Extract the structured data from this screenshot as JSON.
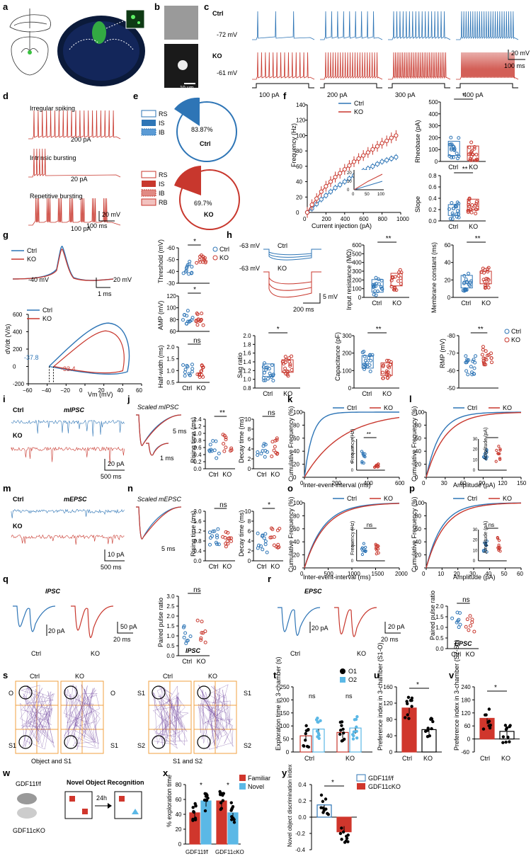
{
  "panel_letters": [
    "a",
    "b",
    "c",
    "d",
    "e",
    "f",
    "g",
    "h",
    "i",
    "j",
    "k",
    "l",
    "m",
    "n",
    "o",
    "p",
    "q",
    "r",
    "s",
    "t",
    "u",
    "v",
    "w",
    "x",
    "y"
  ],
  "colors": {
    "ctrl": "#2e75b6",
    "ko": "#c8372d",
    "novel": "#5bb8e6",
    "familiar": "#d0362c",
    "slice_bg": "#0b1a3a",
    "slice_green": "#39c23f"
  },
  "groups": {
    "ctrl": "Ctrl",
    "ko": "KO"
  },
  "common": {
    "ns": "ns",
    "star1": "*",
    "star2": "**"
  },
  "panel_c": {
    "ctrl_vm": "-72 mV",
    "ko_vm": "-61 mV",
    "steps": [
      "100 pA",
      "200 pA",
      "300 pA",
      "400 pA"
    ],
    "scale_v": "20 mV",
    "scale_t": "100 ms"
  },
  "panel_b": {
    "scale": "10 μm"
  },
  "panel_d": {
    "labels": [
      "Irregular spiking",
      "Intrinsic bursting",
      "Repetitive bursting"
    ],
    "currents": [
      "200 pA",
      "20 pA",
      "100 pA"
    ],
    "scale_v": "20 mV",
    "scale_t": "100 ms"
  },
  "panel_e": {
    "ctrl_legend": [
      "RS",
      "IS",
      "IB"
    ],
    "ctrl_pct": "83.87%",
    "ctrl_label": "Ctrl",
    "ko_legend": [
      "RS",
      "IS",
      "IB",
      "RB"
    ],
    "ko_pct": "69.7%",
    "ko_label": "KO"
  },
  "panel_f": {
    "xlabel": "Current injection (pA)",
    "ylabel": "Frequency (Hz)",
    "yticks": [
      "0",
      "20",
      "40",
      "60",
      "80",
      "100",
      "120",
      "140"
    ],
    "xticks": [
      "0",
      "200",
      "400",
      "600",
      "800",
      "1000"
    ],
    "inset_xticks": [
      "0",
      "50",
      "100"
    ],
    "inset_yticks": [
      "0",
      "10",
      "20"
    ],
    "rheobase_ylabel": "Rheobase (pA)",
    "rheobase_yticks": [
      "0",
      "100",
      "200",
      "300",
      "400",
      "500"
    ],
    "slope_ylabel": "Slope",
    "slope_yticks": [
      "0.0",
      "0.2",
      "0.4",
      "0.6",
      "0.8"
    ]
  },
  "panel_g": {
    "vm": "-40 mV",
    "scale_v": "20 mV",
    "scale_t": "1 ms",
    "ylabel": "dV/dt (V/s)",
    "xlabel": "Vm (mV)",
    "yticks": [
      "-200",
      "0",
      "200",
      "400",
      "600"
    ],
    "xticks": [
      "−60",
      "−40",
      "−20",
      "0",
      "20",
      "40",
      "60"
    ],
    "ctrl_thr": "-37.8",
    "ko_thr": "-33.4",
    "threshold_label": "Threshold (mV)",
    "threshold_ticks": [
      "-30",
      "-40",
      "-50",
      "-60"
    ],
    "amp_label": "AMP (mV)",
    "amp_ticks": [
      "60",
      "80",
      "100",
      "120"
    ],
    "hw_label": "Half-width (ms)",
    "hw_ticks": [
      "0.5",
      "1.0",
      "1.5",
      "2.0"
    ]
  },
  "panel_h": {
    "vm": "-63 mV",
    "scale_v": "5 mV",
    "scale_t": "200 ms",
    "ir_label": "Input resistance (MΩ)",
    "ir_ticks": [
      "0",
      "100",
      "200",
      "300",
      "400",
      "500",
      "600"
    ],
    "mc_label": "Membrane constant (ms)",
    "mc_ticks": [
      "0",
      "20",
      "40",
      "60"
    ],
    "sag_label": "Sag ratio",
    "sag_ticks": [
      "0.8",
      "1.0",
      "1.2",
      "1.4",
      "1.6",
      "1.8",
      "2.0"
    ],
    "cap_label": "Capacitance (pF)",
    "cap_ticks": [
      "0",
      "100",
      "200",
      "300"
    ],
    "rmp_label": "RMP (mV)",
    "rmp_ticks": [
      "-50",
      "-60",
      "-70",
      "-80"
    ]
  },
  "panel_i": {
    "title": "mIPSC",
    "scale_v": "20 pA",
    "scale_t": "500 ms"
  },
  "panel_j": {
    "title": "Scaled mIPSC",
    "scale_t": "5 ms",
    "inset_t": "1 ms",
    "rise_label": "Rising time (ms)",
    "rise_ticks": [
      "0.0",
      "0.2",
      "0.4",
      "0.6",
      "0.8",
      "1.0",
      "1.2",
      "1.4"
    ],
    "decay_label": "Decay time (ms)",
    "decay_ticks": [
      "0",
      "2",
      "4",
      "6",
      "8",
      "10"
    ]
  },
  "panel_k": {
    "ylabel": "Cumulative Frequency (%)",
    "xlabel": "Inter-event-interval (ms)",
    "yticks": [
      "0",
      "20",
      "40",
      "60",
      "80",
      "100"
    ],
    "xticks": [
      "0",
      "200",
      "400",
      "600"
    ],
    "inset_label": "Frequency (Hz)",
    "inset_ticks": [
      "0",
      "2",
      "4",
      "6",
      "8"
    ]
  },
  "panel_l": {
    "ylabel": "Cumulative Frequency (%)",
    "xlabel": "Amplitude (pA)",
    "xticks": [
      "0",
      "30",
      "60",
      "90",
      "120",
      "150"
    ],
    "inset_label": "Amplitude (pA)",
    "inset_ticks": [
      "0",
      "10",
      "20",
      "30"
    ]
  },
  "panel_m": {
    "title": "mEPSC",
    "scale_v": "10 pA",
    "scale_t": "500 ms"
  },
  "panel_n": {
    "title": "Scaled mEPSC",
    "scale_t": "5 ms",
    "rise_label": "Rising time (ms)",
    "rise_ticks": [
      "0.0",
      "0.4",
      "0.8",
      "1.2",
      "1.6",
      "2.0"
    ],
    "decay_label": "Decay time (ms)",
    "decay_ticks": [
      "0",
      "2",
      "4",
      "6",
      "8",
      "10"
    ]
  },
  "panel_o": {
    "ylabel": "Cumulative Frequency (%)",
    "xlabel": "Inter-event-interval (ms)",
    "xticks": [
      "0",
      "500",
      "1000",
      "1500",
      "2000"
    ],
    "inset_label": "Frequency (Hz)",
    "inset_ticks": [
      "0",
      "2",
      "4"
    ]
  },
  "panel_p": {
    "ylabel": "Cumulative Frequency (%)",
    "xlabel": "Amplitude (pA)",
    "xticks": [
      "0",
      "10",
      "20",
      "30",
      "40",
      "50",
      "60"
    ],
    "inset_label": "Amplitude (pA)",
    "inset_ticks": [
      "0",
      "10",
      "20",
      "30"
    ]
  },
  "panel_q": {
    "title": "IPSC",
    "scale_ctrl": "20 pA",
    "scale_ko_v": "50 pA",
    "scale_ko_t": "20 ms",
    "ppr_label": "Paired pulse ratio",
    "ppr_ticks": [
      "0.0",
      "0.5",
      "1.0",
      "1.5",
      "2.0",
      "2.5",
      "3.0"
    ],
    "ppr_title": "IPSC"
  },
  "panel_r": {
    "title": "EPSC",
    "scale_ctrl": "20 pA",
    "scale_ko_v": "20 pA",
    "scale_ko_t": "20 ms",
    "ppr_label": "Paired pulse ratio",
    "ppr_ticks": [
      "0.0",
      "0.5",
      "1.0",
      "1.5",
      "2.0"
    ],
    "ppr_title": "EPSC"
  },
  "panel_s": {
    "left_caption": "Object and S1",
    "right_caption": "S1 and S2",
    "left_row_labels": [
      "O",
      "S1"
    ],
    "right_row_labels_l": [
      "S1",
      "S2"
    ],
    "right_row_labels_r": [
      "S1",
      "S2"
    ]
  },
  "panel_t": {
    "ylabel": "Exploration time in 3-chamber (s)",
    "yticks": [
      "0",
      "50",
      "100",
      "150",
      "200",
      "250"
    ],
    "legend": [
      "O1",
      "O2"
    ]
  },
  "panel_u": {
    "ylabel": "Preference index in 3-chamber (S1-O)",
    "yticks": [
      "0",
      "40",
      "80",
      "120",
      "160"
    ]
  },
  "panel_v": {
    "ylabel": "Preference index in 3-chamber (S2-S1)",
    "yticks": [
      "-60",
      "0",
      "60",
      "120",
      "180",
      "240"
    ]
  },
  "panel_w": {
    "title": "Novel Object Recognition",
    "delay": "24h",
    "flox": "GDF11f/f",
    "cko": "GDF11cKO"
  },
  "panel_x": {
    "ylabel": "% exploration time",
    "yticks": [
      "0",
      "20",
      "40",
      "60",
      "80"
    ],
    "legend": [
      "Familiar",
      "Novel"
    ],
    "xlabels": [
      "GDF11f/f",
      "GDF11cKO"
    ]
  },
  "panel_y": {
    "ylabel": "Novel object discrimination index",
    "yticks": [
      "-0.4",
      "-0.2",
      "0.0",
      "0.2",
      "0.4"
    ],
    "legend": [
      "GDF11f/f",
      "GDF11cKO"
    ]
  },
  "chart_data": [
    {
      "panel": "f",
      "type": "line",
      "xlabel": "Current injection (pA)",
      "ylabel": "Frequency (Hz)",
      "xlim": [
        0,
        1000
      ],
      "ylim": [
        0,
        140
      ],
      "x": [
        0,
        50,
        100,
        150,
        200,
        250,
        300,
        350,
        400,
        450,
        500,
        550,
        600,
        650,
        700,
        750,
        800,
        850,
        900,
        950
      ],
      "series": [
        {
          "name": "Ctrl",
          "values": [
            0,
            5,
            11,
            17,
            22,
            27,
            32,
            36,
            40,
            44,
            48,
            51,
            54,
            57,
            60,
            63,
            66,
            68,
            70,
            72
          ]
        },
        {
          "name": "KO",
          "values": [
            0,
            10,
            18,
            27,
            34,
            40,
            46,
            51,
            56,
            61,
            66,
            70,
            74,
            78,
            82,
            86,
            90,
            93,
            97,
            100
          ]
        }
      ]
    },
    {
      "panel": "f",
      "type": "bar",
      "title": "Rheobase (pA)",
      "categories": [
        "Ctrl",
        "KO"
      ],
      "values": [
        110,
        80
      ]
    },
    {
      "panel": "f",
      "type": "bar",
      "title": "Slope",
      "categories": [
        "Ctrl",
        "KO"
      ],
      "values": [
        0.18,
        0.28
      ]
    },
    {
      "panel": "t",
      "type": "bar",
      "ylabel": "Exploration time in 3-chamber (s)",
      "categories": [
        "Ctrl",
        "KO"
      ],
      "series": [
        {
          "name": "O1",
          "values": [
            62,
            75
          ]
        },
        {
          "name": "O2",
          "values": [
            88,
            92
          ]
        }
      ]
    },
    {
      "panel": "u",
      "type": "bar",
      "ylabel": "Preference index in 3-chamber (S1-O)",
      "categories": [
        "Ctrl",
        "KO"
      ],
      "values": [
        108,
        55
      ]
    },
    {
      "panel": "v",
      "type": "bar",
      "ylabel": "Preference index in 3-chamber (S2-S1)",
      "categories": [
        "Ctrl",
        "KO"
      ],
      "values": [
        95,
        35
      ]
    },
    {
      "panel": "x",
      "type": "bar",
      "ylabel": "% exploration time",
      "categories": [
        "GDF11f/f",
        "GDF11cKO"
      ],
      "series": [
        {
          "name": "Familiar",
          "values": [
            42,
            58
          ]
        },
        {
          "name": "Novel",
          "values": [
            58,
            42
          ]
        }
      ]
    },
    {
      "panel": "y",
      "type": "bar",
      "ylabel": "Novel object discrimination index",
      "categories": [
        "GDF11f/f",
        "GDF11cKO"
      ],
      "values": [
        0.15,
        -0.18
      ]
    }
  ]
}
